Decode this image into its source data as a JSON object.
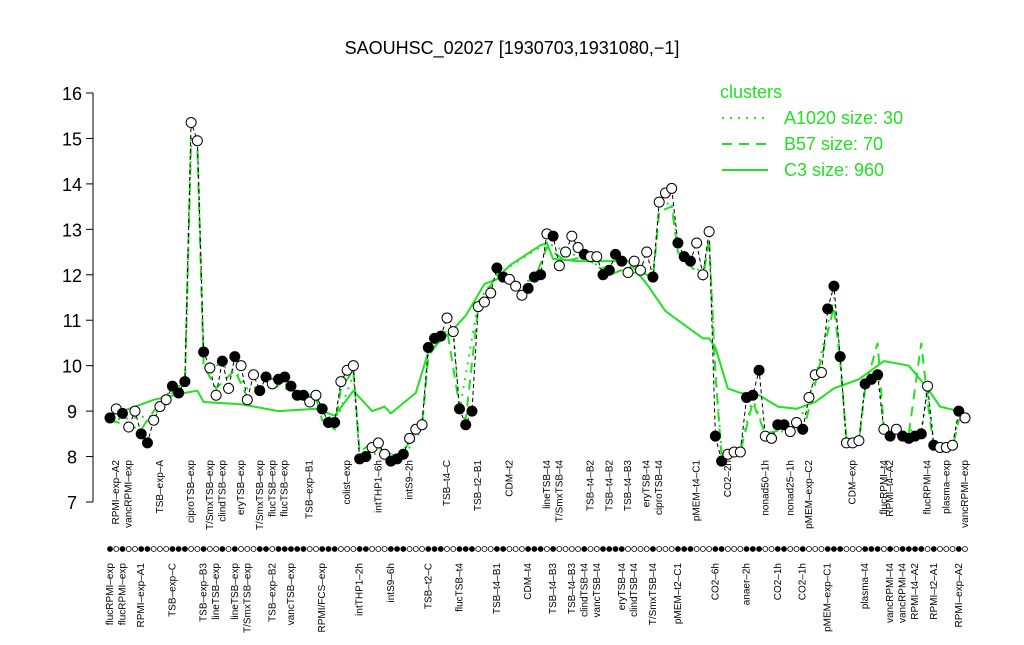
{
  "chart_data": {
    "type": "line",
    "title": "SAOUHSC_02027 [1930703,1931080,−1]",
    "ylim": [
      7,
      16
    ],
    "yticks": [
      7,
      8,
      9,
      10,
      11,
      12,
      13,
      14,
      15,
      16
    ],
    "legend_title": "clusters",
    "legend": "top-right",
    "series": [
      {
        "name": "A1020 size: 30",
        "color": "#22e022",
        "dash": "dotted",
        "x": [
          0,
          7,
          10,
          12,
          13,
          14,
          15,
          20,
          22,
          28,
          33,
          36,
          39,
          40,
          44,
          47,
          50,
          51,
          55,
          56,
          59,
          62,
          70,
          80,
          87,
          88,
          90,
          91,
          95,
          96,
          97,
          98,
          101,
          103,
          105,
          110,
          113,
          116,
          117,
          118,
          120,
          121,
          123,
          124,
          130,
          131,
          132,
          135,
          136
        ],
        "values": [
          8.8,
          8.9,
          9.4,
          9.5,
          15.0,
          14.9,
          10.1,
          9.9,
          9.5,
          9.6,
          9.3,
          8.7,
          9.8,
          8.0,
          8.1,
          8.0,
          8.6,
          10.3,
          10.8,
          9.0,
          11.4,
          12.0,
          12.7,
          12.1,
          12.0,
          13.5,
          13.6,
          12.6,
          12.0,
          12.8,
          9.9,
          8.1,
          8.2,
          9.3,
          8.5,
          8.6,
          9.7,
          11.5,
          10.2,
          8.3,
          8.3,
          9.6,
          9.9,
          8.5,
          8.6,
          9.4,
          8.3,
          8.2,
          8.9
        ]
      },
      {
        "name": "B57 size: 70",
        "color": "#22e022",
        "dash": "dashed",
        "x": [
          0,
          5,
          7,
          10,
          12,
          13,
          14,
          15,
          17,
          20,
          22,
          25,
          28,
          31,
          33,
          34,
          36,
          37,
          39,
          40,
          42,
          44,
          46,
          48,
          50,
          51,
          54,
          56,
          57,
          59,
          62,
          65,
          68,
          70,
          73,
          76,
          80,
          84,
          87,
          88,
          90,
          91,
          93,
          95,
          96,
          97,
          98,
          101,
          103,
          105,
          108,
          111,
          113,
          116,
          117,
          118,
          120,
          121,
          123,
          124,
          128,
          130,
          131,
          132,
          135,
          136,
          137
        ],
        "values": [
          8.8,
          8.6,
          9.0,
          9.5,
          9.6,
          15.0,
          14.8,
          10.0,
          9.5,
          9.9,
          9.3,
          9.6,
          9.5,
          9.4,
          9.3,
          8.8,
          8.6,
          9.5,
          9.9,
          8.1,
          8.3,
          8.1,
          8.0,
          8.3,
          8.7,
          10.2,
          10.8,
          9.1,
          8.8,
          11.3,
          12.0,
          11.8,
          11.9,
          12.6,
          12.3,
          12.4,
          12.0,
          12.2,
          11.9,
          13.4,
          13.5,
          12.5,
          12.2,
          11.9,
          12.8,
          9.8,
          8.0,
          8.1,
          9.2,
          8.5,
          8.6,
          8.5,
          9.6,
          11.3,
          10.1,
          8.4,
          8.3,
          9.5,
          10.5,
          8.6,
          8.5,
          10.5,
          9.2,
          8.2,
          8.2,
          8.8,
          8.9
        ]
      },
      {
        "name": "C3 size: 960",
        "color": "#22e022",
        "dash": "solid",
        "x": [
          0,
          7,
          12,
          14,
          15,
          21,
          27,
          33,
          36,
          39,
          40,
          42,
          44,
          45,
          49,
          51,
          55,
          57,
          60,
          62,
          64,
          69,
          70,
          71,
          75,
          83,
          86,
          89,
          92,
          95,
          96,
          97,
          99,
          101,
          104,
          107,
          110,
          113,
          116,
          120,
          122,
          124,
          128,
          131,
          133,
          136,
          137
        ],
        "values": [
          8.9,
          9.25,
          9.4,
          9.45,
          9.2,
          9.15,
          9.0,
          9.05,
          8.9,
          9.45,
          9.3,
          9.0,
          9.1,
          8.95,
          9.4,
          10.3,
          10.8,
          11.1,
          11.8,
          11.9,
          12.2,
          12.65,
          12.7,
          12.35,
          12.3,
          12.3,
          11.8,
          11.2,
          10.9,
          10.6,
          10.6,
          10.4,
          9.5,
          9.4,
          9.35,
          9.1,
          9.05,
          9.2,
          9.5,
          9.7,
          9.9,
          10.1,
          10.0,
          9.5,
          9.1,
          9.0,
          8.8
        ]
      }
    ],
    "points": {
      "values": [
        8.85,
        9.05,
        8.95,
        8.65,
        9.0,
        8.5,
        8.3,
        8.8,
        9.1,
        9.25,
        9.55,
        9.4,
        9.65,
        15.35,
        14.95,
        10.3,
        9.95,
        9.35,
        10.1,
        9.5,
        10.2,
        10.0,
        9.25,
        9.8,
        9.45,
        9.75,
        9.6,
        9.7,
        9.75,
        9.55,
        9.35,
        9.35,
        9.2,
        9.35,
        9.05,
        8.75,
        8.75,
        9.65,
        9.9,
        10.0,
        7.95,
        8.0,
        8.2,
        8.3,
        8.05,
        7.9,
        7.95,
        8.05,
        8.4,
        8.6,
        8.7,
        10.4,
        10.6,
        10.65,
        11.05,
        10.75,
        9.05,
        8.7,
        9.0,
        11.3,
        11.4,
        11.6,
        12.15,
        11.95,
        11.9,
        11.75,
        11.55,
        11.7,
        11.95,
        12.0,
        12.9,
        12.85,
        12.2,
        12.5,
        12.85,
        12.6,
        12.45,
        12.4,
        12.4,
        12.0,
        12.1,
        12.45,
        12.3,
        12.05,
        12.3,
        12.1,
        12.5,
        11.95,
        13.6,
        13.8,
        13.9,
        12.7,
        12.4,
        12.3,
        12.7,
        12.0,
        12.95,
        8.45,
        7.9,
        8.05,
        8.1,
        8.1,
        9.3,
        9.35,
        9.9,
        8.45,
        8.4,
        8.7,
        8.7,
        8.55,
        8.75,
        8.6,
        9.3,
        9.8,
        9.85,
        11.25,
        11.75,
        10.2,
        8.3,
        8.3,
        8.35,
        9.6,
        9.7,
        9.8,
        8.6,
        8.45,
        8.6,
        8.45,
        8.4,
        8.45,
        8.5,
        9.55,
        8.25,
        8.2,
        8.2,
        8.25,
        9.0,
        8.85
      ],
      "filled": [
        true,
        false,
        true,
        false,
        false,
        true,
        true,
        false,
        false,
        false,
        true,
        true,
        true,
        false,
        false,
        true,
        false,
        false,
        true,
        false,
        true,
        false,
        false,
        false,
        true,
        true,
        false,
        true,
        true,
        true,
        true,
        true,
        false,
        false,
        true,
        true,
        true,
        false,
        false,
        false,
        true,
        true,
        false,
        false,
        false,
        true,
        true,
        true,
        false,
        false,
        false,
        true,
        true,
        true,
        false,
        false,
        true,
        true,
        true,
        false,
        false,
        false,
        true,
        true,
        false,
        false,
        false,
        true,
        true,
        true,
        false,
        true,
        false,
        false,
        false,
        false,
        true,
        false,
        false,
        true,
        true,
        true,
        true,
        false,
        false,
        false,
        false,
        true,
        false,
        false,
        false,
        true,
        true,
        true,
        false,
        false,
        false,
        true,
        true,
        false,
        false,
        false,
        true,
        true,
        true,
        false,
        false,
        true,
        true,
        false,
        false,
        true,
        false,
        false,
        false,
        true,
        true,
        true,
        false,
        false,
        false,
        true,
        true,
        true,
        false,
        true,
        false,
        true,
        true,
        true,
        true,
        false,
        true,
        false,
        false,
        false,
        true,
        false
      ]
    },
    "top_labels": [
      {
        "x": 1,
        "label": "RPMI–exp–A2"
      },
      {
        "x": 3,
        "label": "vancRPMI–exp"
      },
      {
        "x": 8,
        "label": "TSB–exp–A"
      },
      {
        "x": 13,
        "label": "ciproTSB–exp"
      },
      {
        "x": 16,
        "label": "T/SmxTSB–exp"
      },
      {
        "x": 18,
        "label": "clindTSB–exp"
      },
      {
        "x": 21,
        "label": "eryTSB–exp"
      },
      {
        "x": 24,
        "label": "T/SmxTSB–exp"
      },
      {
        "x": 26,
        "label": "flucTSB–exp"
      },
      {
        "x": 28,
        "label": "flucTSB–exp"
      },
      {
        "x": 32,
        "label": "TSB–exp–B1"
      },
      {
        "x": 38,
        "label": "colist–exp"
      },
      {
        "x": 43,
        "label": "intTHP1–6h"
      },
      {
        "x": 48,
        "label": "intS9–2h"
      },
      {
        "x": 54,
        "label": "TSB–t4–C"
      },
      {
        "x": 59,
        "label": "TSB–t2–B1"
      },
      {
        "x": 64,
        "label": "CDM–t2"
      },
      {
        "x": 70,
        "label": "lineTSB–t4"
      },
      {
        "x": 72,
        "label": "T/SmxTSB–t4"
      },
      {
        "x": 77,
        "label": "TSB–t4–B2"
      },
      {
        "x": 80,
        "label": "TSB–t4–B2"
      },
      {
        "x": 83,
        "label": "TSB–t4–B3"
      },
      {
        "x": 86,
        "label": "eryTSB–t4"
      },
      {
        "x": 88,
        "label": "ciproTSB–t4"
      },
      {
        "x": 94,
        "label": "pMEM–t4–C1"
      },
      {
        "x": 99,
        "label": "CO2–2h"
      },
      {
        "x": 105,
        "label": "nonad50–1h"
      },
      {
        "x": 109,
        "label": "nonad25–1h"
      },
      {
        "x": 112,
        "label": "pMEM–exp–C2"
      },
      {
        "x": 119,
        "label": "CDM–exp"
      },
      {
        "x": 124,
        "label": "flucRPMI–t4"
      },
      {
        "x": 125,
        "label": "RPMI–t4–A2"
      },
      {
        "x": 131,
        "label": "flucRPMI–t4"
      },
      {
        "x": 134,
        "label": "plasma–exp"
      },
      {
        "x": 137,
        "label": "vancRPMI–exp"
      }
    ],
    "bottom_labels": [
      {
        "x": 0,
        "label": "flucRPMI–exp"
      },
      {
        "x": 2,
        "label": "flucRPMI–exp"
      },
      {
        "x": 5,
        "label": "RPMI–exp–A1"
      },
      {
        "x": 10,
        "label": "TSB–exp–C"
      },
      {
        "x": 15,
        "label": "TSB–exp–B3"
      },
      {
        "x": 17,
        "label": "lineTSB–exp"
      },
      {
        "x": 20,
        "label": "lineTSB–exp"
      },
      {
        "x": 22,
        "label": "T/SmxTSB–exp"
      },
      {
        "x": 26,
        "label": "TSB–exp–B2"
      },
      {
        "x": 29,
        "label": "vancTSB–exp"
      },
      {
        "x": 34,
        "label": "RPMI/FCS–exp"
      },
      {
        "x": 40,
        "label": "intTHP1–2h"
      },
      {
        "x": 45,
        "label": "intS9–6h"
      },
      {
        "x": 51,
        "label": "TSB–t2–C"
      },
      {
        "x": 56,
        "label": "flucTSB–t4"
      },
      {
        "x": 62,
        "label": "TSB–t4–B1"
      },
      {
        "x": 67,
        "label": "CDM–t4"
      },
      {
        "x": 71,
        "label": "TSB–t4–B3"
      },
      {
        "x": 74,
        "label": "TSB–t4–B3"
      },
      {
        "x": 76,
        "label": "clindTSB–t4"
      },
      {
        "x": 78,
        "label": "vancTSB–t4"
      },
      {
        "x": 82,
        "label": "eryTSB–t4"
      },
      {
        "x": 84,
        "label": "clindTSB–t4"
      },
      {
        "x": 87,
        "label": "T/SmxTSB–t4"
      },
      {
        "x": 91,
        "label": "pMEM–t2–C1"
      },
      {
        "x": 97,
        "label": "CO2–6h"
      },
      {
        "x": 102,
        "label": "anaer–2h"
      },
      {
        "x": 107,
        "label": "CO2–1h"
      },
      {
        "x": 111,
        "label": "CO2–1h"
      },
      {
        "x": 115,
        "label": "pMEM–exp–C1"
      },
      {
        "x": 121,
        "label": "plasma–t4"
      },
      {
        "x": 125,
        "label": "vancRPMI–t4"
      },
      {
        "x": 127,
        "label": "vancRPMI–t4"
      },
      {
        "x": 129,
        "label": "RPMI–t4–A2"
      },
      {
        "x": 132,
        "label": "RPMI–t2–A1"
      },
      {
        "x": 136,
        "label": "RPMI–exp–A2"
      }
    ]
  }
}
